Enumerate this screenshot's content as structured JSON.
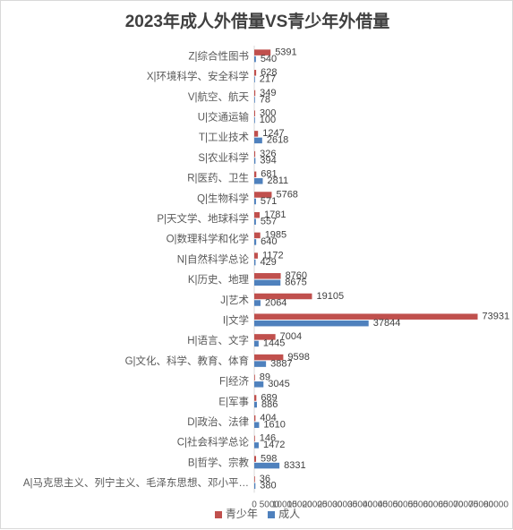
{
  "chart_data": {
    "type": "bar",
    "orientation": "horizontal",
    "title": "2023年成人外借量VS青少年外借量",
    "categories": [
      "Z|综合性图书",
      "X|环境科学、安全科学",
      "V|航空、航天",
      "U|交通运输",
      "T|工业技术",
      "S|农业科学",
      "R|医药、卫生",
      "Q|生物科学",
      "P|天文学、地球科学",
      "O|数理科学和化学",
      "N|自然科学总论",
      "K|历史、地理",
      "J|艺术",
      "I|文学",
      "H|语言、文字",
      "G|文化、科学、教育、体育",
      "F|经济",
      "E|军事",
      "D|政治、法律",
      "C|社会科学总论",
      "B|哲学、宗教",
      "A|马克思主义、列宁主义、毛泽东思想、邓小平…"
    ],
    "series": [
      {
        "name": "青少年",
        "color": "#c0504d",
        "values": [
          5391,
          628,
          349,
          300,
          1247,
          326,
          681,
          5768,
          1781,
          1985,
          1172,
          8760,
          19105,
          73931,
          7004,
          9598,
          89,
          689,
          404,
          146,
          598,
          36
        ],
        "labels": [
          "5391",
          "628",
          "349",
          "300",
          "1247",
          "326",
          "681",
          "5768",
          "1781",
          "1985",
          "1172",
          "8760",
          "19105",
          "73931",
          "7004",
          "9598",
          "89",
          "689",
          "404",
          "146",
          "598",
          "36"
        ]
      },
      {
        "name": "成人",
        "color": "#4f81bd",
        "values": [
          540,
          217,
          78,
          100,
          2618,
          394,
          2811,
          571,
          557,
          640,
          429,
          8675,
          2064,
          37844,
          1445,
          3887,
          3045,
          886,
          1610,
          1472,
          8331,
          380
        ],
        "labels": [
          "540",
          "217",
          "78",
          "100",
          "2618",
          "394",
          "2811",
          "571",
          "557",
          "640",
          "429",
          "8675",
          "2064",
          "37844",
          "1445",
          "3887",
          "3045",
          "886",
          "1610",
          "1472",
          "8331",
          "380"
        ]
      }
    ],
    "xlim": [
      0,
      80000
    ],
    "x_ticks": [
      0,
      5000,
      10000,
      15000,
      20000,
      25000,
      30000,
      35000,
      40000,
      45000,
      50000,
      55000,
      60000,
      65000,
      70000,
      75000,
      80000
    ],
    "x_tick_labels": [
      "0",
      "5000",
      "10000",
      "15000",
      "20000",
      "25000",
      "30000",
      "35000",
      "40000",
      "45000",
      "50000",
      "55000",
      "60000",
      "65000",
      "70000",
      "75000",
      "80000"
    ],
    "grid": false,
    "legend_position": "bottom"
  }
}
